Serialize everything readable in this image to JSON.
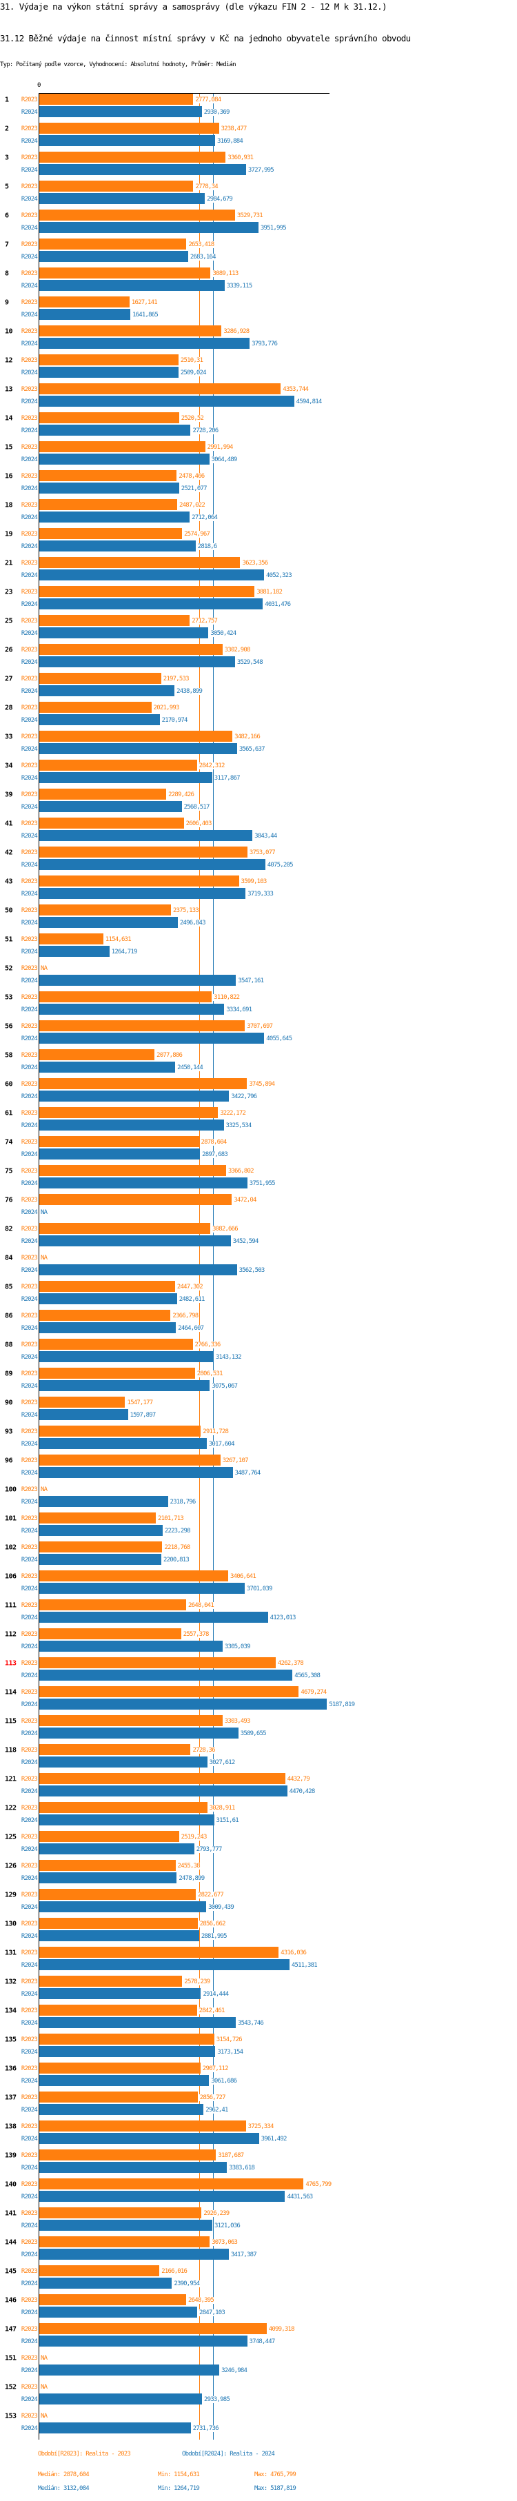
{
  "header": {
    "title": "31. Výdaje na výkon státní správy a samosprávy (dle výkazu FIN 2 - 12 M k 31.12.)",
    "subtitle": "31.12 Běžné výdaje na činnost místní správy v Kč na jednoho obyvatele správního obvodu",
    "meta": "Typ: Počítaný podle vzorce, Vyhodnocení: Absolutní hodnoty, Průměr: Medián"
  },
  "chart_data": {
    "type": "bar",
    "orientation": "horizontal",
    "axis_zero_label": "0",
    "xlim": [
      0,
      5250
    ],
    "colors": {
      "R2023": "#ff7f0e",
      "R2024": "#1f77b4",
      "highlight": "#ff0000"
    },
    "series_labels": [
      "R2023",
      "R2024"
    ],
    "na_label": "NA",
    "highlighted_category": "113",
    "groups": [
      {
        "id": "1",
        "R2023": "2777,084",
        "R2024": "2930,369"
      },
      {
        "id": "2",
        "R2023": "3238,477",
        "R2024": "3169,884"
      },
      {
        "id": "3",
        "R2023": "3360,931",
        "R2024": "3727,995"
      },
      {
        "id": "5",
        "R2023": "2778,34",
        "R2024": "2984,679"
      },
      {
        "id": "6",
        "R2023": "3529,731",
        "R2024": "3951,995"
      },
      {
        "id": "7",
        "R2023": "2653,418",
        "R2024": "2683,164"
      },
      {
        "id": "8",
        "R2023": "3089,113",
        "R2024": "3339,115"
      },
      {
        "id": "9",
        "R2023": "1627,141",
        "R2024": "1641,865"
      },
      {
        "id": "10",
        "R2023": "3286,928",
        "R2024": "3793,776"
      },
      {
        "id": "12",
        "R2023": "2510,31",
        "R2024": "2509,024"
      },
      {
        "id": "13",
        "R2023": "4353,744",
        "R2024": "4594,814"
      },
      {
        "id": "14",
        "R2023": "2520,52",
        "R2024": "2728,206"
      },
      {
        "id": "15",
        "R2023": "2991,994",
        "R2024": "3064,489"
      },
      {
        "id": "16",
        "R2023": "2478,466",
        "R2024": "2521,077"
      },
      {
        "id": "18",
        "R2023": "2487,022",
        "R2024": "2712,064"
      },
      {
        "id": "19",
        "R2023": "2574,967",
        "R2024": "2818,6"
      },
      {
        "id": "21",
        "R2023": "3623,356",
        "R2024": "4052,323"
      },
      {
        "id": "23",
        "R2023": "3881,182",
        "R2024": "4031,476"
      },
      {
        "id": "25",
        "R2023": "2712,757",
        "R2024": "3050,424"
      },
      {
        "id": "26",
        "R2023": "3302,908",
        "R2024": "3529,548"
      },
      {
        "id": "27",
        "R2023": "2197,533",
        "R2024": "2438,899"
      },
      {
        "id": "28",
        "R2023": "2021,993",
        "R2024": "2170,974"
      },
      {
        "id": "33",
        "R2023": "3482,166",
        "R2024": "3565,637"
      },
      {
        "id": "34",
        "R2023": "2842,312",
        "R2024": "3117,867"
      },
      {
        "id": "39",
        "R2023": "2289,426",
        "R2024": "2568,517"
      },
      {
        "id": "41",
        "R2023": "2606,403",
        "R2024": "3843,44"
      },
      {
        "id": "42",
        "R2023": "3753,077",
        "R2024": "4075,205"
      },
      {
        "id": "43",
        "R2023": "3599,103",
        "R2024": "3719,333"
      },
      {
        "id": "50",
        "R2023": "2375,133",
        "R2024": "2496,843"
      },
      {
        "id": "51",
        "R2023": "1154,631",
        "R2024": "1264,719"
      },
      {
        "id": "52",
        "R2023": null,
        "R2024": "3547,161"
      },
      {
        "id": "53",
        "R2023": "3110,822",
        "R2024": "3334,691"
      },
      {
        "id": "56",
        "R2023": "3707,697",
        "R2024": "4055,645"
      },
      {
        "id": "58",
        "R2023": "2077,886",
        "R2024": "2450,144"
      },
      {
        "id": "60",
        "R2023": "3745,894",
        "R2024": "3422,796"
      },
      {
        "id": "61",
        "R2023": "3222,172",
        "R2024": "3325,534"
      },
      {
        "id": "74",
        "R2023": "2878,604",
        "R2024": "2897,683"
      },
      {
        "id": "75",
        "R2023": "3366,802",
        "R2024": "3751,955"
      },
      {
        "id": "76",
        "R2023": "3472,04",
        "R2024": null
      },
      {
        "id": "82",
        "R2023": "3082,666",
        "R2024": "3452,594"
      },
      {
        "id": "84",
        "R2023": null,
        "R2024": "3562,503"
      },
      {
        "id": "85",
        "R2023": "2447,302",
        "R2024": "2482,611"
      },
      {
        "id": "86",
        "R2023": "2366,798",
        "R2024": "2464,607"
      },
      {
        "id": "88",
        "R2023": "2766,336",
        "R2024": "3143,132"
      },
      {
        "id": "89",
        "R2023": "2806,531",
        "R2024": "3075,067"
      },
      {
        "id": "90",
        "R2023": "1547,177",
        "R2024": "1597,897"
      },
      {
        "id": "93",
        "R2023": "2911,728",
        "R2024": "3017,604"
      },
      {
        "id": "96",
        "R2023": "3267,107",
        "R2024": "3487,764"
      },
      {
        "id": "100",
        "R2023": null,
        "R2024": "2318,796"
      },
      {
        "id": "101",
        "R2023": "2101,713",
        "R2024": "2223,298"
      },
      {
        "id": "102",
        "R2023": "2218,768",
        "R2024": "2200,813"
      },
      {
        "id": "106",
        "R2023": "3406,641",
        "R2024": "3701,039"
      },
      {
        "id": "111",
        "R2023": "2648,041",
        "R2024": "4123,013"
      },
      {
        "id": "112",
        "R2023": "2557,378",
        "R2024": "3305,039"
      },
      {
        "id": "113",
        "R2023": "4262,378",
        "R2024": "4565,308"
      },
      {
        "id": "114",
        "R2023": "4679,274",
        "R2024": "5187,819"
      },
      {
        "id": "115",
        "R2023": "3303,493",
        "R2024": "3589,655"
      },
      {
        "id": "118",
        "R2023": "2728,36",
        "R2024": "3027,612"
      },
      {
        "id": "121",
        "R2023": "4432,79",
        "R2024": "4470,428"
      },
      {
        "id": "122",
        "R2023": "3028,911",
        "R2024": "3151,61"
      },
      {
        "id": "125",
        "R2023": "2519,243",
        "R2024": "2793,777"
      },
      {
        "id": "126",
        "R2023": "2455,38",
        "R2024": "2478,899"
      },
      {
        "id": "129",
        "R2023": "2822,677",
        "R2024": "3009,439"
      },
      {
        "id": "130",
        "R2023": "2856,662",
        "R2024": "2881,995"
      },
      {
        "id": "131",
        "R2023": "4316,036",
        "R2024": "4511,381"
      },
      {
        "id": "132",
        "R2023": "2578,239",
        "R2024": "2914,444"
      },
      {
        "id": "134",
        "R2023": "2842,461",
        "R2024": "3543,746"
      },
      {
        "id": "135",
        "R2023": "3154,726",
        "R2024": "3173,154"
      },
      {
        "id": "136",
        "R2023": "2907,112",
        "R2024": "3061,686"
      },
      {
        "id": "137",
        "R2023": "2856,727",
        "R2024": "2962,41"
      },
      {
        "id": "138",
        "R2023": "3725,334",
        "R2024": "3961,492"
      },
      {
        "id": "139",
        "R2023": "3187,687",
        "R2024": "3383,618"
      },
      {
        "id": "140",
        "R2023": "4765,799",
        "R2024": "4431,563"
      },
      {
        "id": "141",
        "R2023": "2926,239",
        "R2024": "3121,036"
      },
      {
        "id": "144",
        "R2023": "3073,063",
        "R2024": "3417,387"
      },
      {
        "id": "145",
        "R2023": "2166,016",
        "R2024": "2390,954"
      },
      {
        "id": "146",
        "R2023": "2648,395",
        "R2024": "2847,103"
      },
      {
        "id": "147",
        "R2023": "4099,318",
        "R2024": "3748,447"
      },
      {
        "id": "151",
        "R2023": null,
        "R2024": "3246,984"
      },
      {
        "id": "152",
        "R2023": null,
        "R2024": "2933,985"
      },
      {
        "id": "153",
        "R2023": null,
        "R2024": "2731,736"
      }
    ],
    "median_lines": {
      "R2023": 2878.604,
      "R2024": 3132.084
    }
  },
  "legend": {
    "r2023": "Období[R2023]: Realita - 2023",
    "r2024": "Období[R2024]: Realita - 2024",
    "stats_2023": {
      "median": "Medián: 2878,604",
      "min": "Min: 1154,631",
      "max": "Max: 4765,799"
    },
    "stats_2024": {
      "median": "Medián: 3132,084",
      "min": "Min: 1264,719",
      "max": "Max: 5187,819"
    }
  }
}
